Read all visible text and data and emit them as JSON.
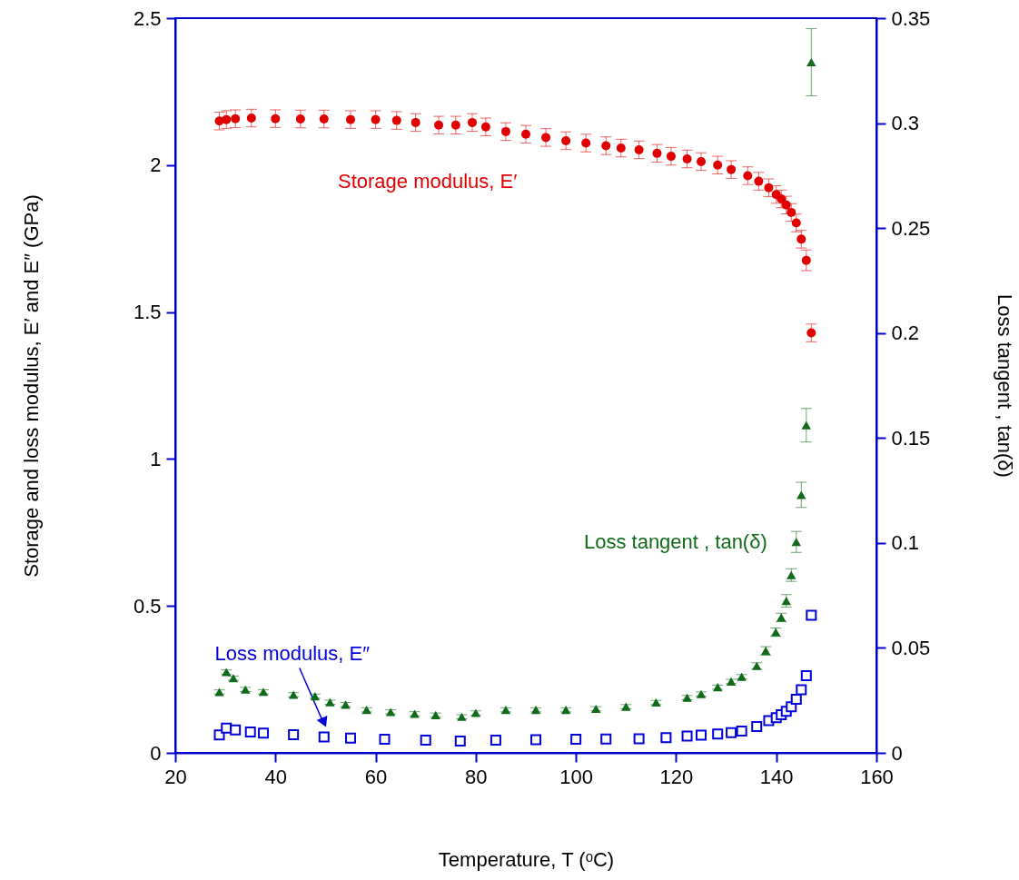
{
  "chart_data": {
    "type": "scatter",
    "xlabel": "Temperature, T (ᵒC)",
    "ylabel": "Storage and loss modulus, E′ and E″ (GPa)",
    "y2label": "Loss tangent , tan(δ)",
    "xlim": [
      20,
      160
    ],
    "xticks": [
      20,
      40,
      60,
      80,
      100,
      120,
      140,
      160
    ],
    "ylim": [
      0,
      2.5
    ],
    "yticks": [
      0,
      0.5,
      1,
      1.5,
      2,
      2.5
    ],
    "y2lim": [
      0,
      0.35
    ],
    "y2ticks": [
      0,
      0.05,
      0.1,
      0.15,
      0.2,
      0.25,
      0.3,
      0.35
    ],
    "grid": false,
    "series": [
      {
        "name": "Storage modulus, E′",
        "color": "#e00000",
        "marker": "circle",
        "x": [
          28.8,
          30.2,
          32,
          35.2,
          40,
          45,
          49.7,
          55,
          60,
          64.2,
          68,
          72.6,
          76,
          79.3,
          82,
          86,
          90,
          94,
          98,
          102,
          106,
          109,
          112.6,
          116.2,
          119,
          122.2,
          125,
          128.3,
          131,
          134.3,
          136.5,
          138.5,
          140,
          141,
          142,
          143,
          144,
          145,
          146,
          147
        ],
        "values": [
          2.15,
          2.155,
          2.158,
          2.16,
          2.158,
          2.157,
          2.157,
          2.155,
          2.155,
          2.152,
          2.145,
          2.136,
          2.136,
          2.145,
          2.13,
          2.114,
          2.105,
          2.094,
          2.083,
          2.075,
          2.066,
          2.058,
          2.052,
          2.04,
          2.03,
          2.021,
          2.012,
          2.0,
          1.985,
          1.964,
          1.945,
          1.923,
          1.9,
          1.885,
          1.864,
          1.839,
          1.803,
          1.748,
          1.676,
          1.429
        ],
        "errors": [
          0.03,
          0.03,
          0.03,
          0.03,
          0.03,
          0.03,
          0.03,
          0.03,
          0.03,
          0.03,
          0.03,
          0.03,
          0.03,
          0.03,
          0.03,
          0.03,
          0.03,
          0.03,
          0.03,
          0.03,
          0.03,
          0.03,
          0.03,
          0.03,
          0.03,
          0.03,
          0.03,
          0.03,
          0.03,
          0.03,
          0.03,
          0.03,
          0.03,
          0.03,
          0.03,
          0.03,
          0.03,
          0.03,
          0.035,
          0.03
        ]
      },
      {
        "name": "Loss modulus, E″",
        "color": "#0000dd",
        "marker": "square",
        "x": [
          28.8,
          30.2,
          32,
          35,
          37.6,
          43.6,
          49.7,
          55,
          61.8,
          70,
          76.9,
          84,
          92,
          100,
          106,
          112.6,
          118,
          122.2,
          125,
          128.3,
          131,
          133.1,
          136.1,
          138.5,
          140,
          141,
          142,
          143,
          144,
          145,
          146,
          147
        ],
        "values": [
          0.061,
          0.084,
          0.078,
          0.071,
          0.067,
          0.062,
          0.054,
          0.05,
          0.046,
          0.043,
          0.04,
          0.043,
          0.045,
          0.046,
          0.047,
          0.048,
          0.052,
          0.057,
          0.06,
          0.064,
          0.069,
          0.074,
          0.09,
          0.11,
          0.12,
          0.13,
          0.141,
          0.157,
          0.182,
          0.215,
          0.263,
          0.468
        ]
      },
      {
        "name": "Loss tangent , tan(δ)",
        "color": "#0f6b1a",
        "marker": "triangle",
        "axis": "y2",
        "x": [
          28.8,
          30.2,
          31.6,
          34,
          37.6,
          43.6,
          47.9,
          50.9,
          54,
          58.2,
          63,
          67.8,
          72,
          77.2,
          80,
          86,
          92,
          98,
          104,
          110,
          116,
          122.2,
          125,
          128.3,
          131,
          133.1,
          136.1,
          137.9,
          139.9,
          141,
          142,
          143,
          144,
          145,
          146,
          147
        ],
        "values": [
          0.029,
          0.0385,
          0.0356,
          0.0302,
          0.0291,
          0.0277,
          0.027,
          0.0241,
          0.023,
          0.0205,
          0.0195,
          0.0186,
          0.018,
          0.0172,
          0.019,
          0.0205,
          0.0205,
          0.0205,
          0.021,
          0.022,
          0.024,
          0.0263,
          0.028,
          0.0313,
          0.034,
          0.0363,
          0.0414,
          0.0486,
          0.0575,
          0.0645,
          0.0724,
          0.0847,
          0.1005,
          0.1229,
          0.1561,
          0.329
        ],
        "errors": [
          0.001,
          0.001,
          0.001,
          0.001,
          0.001,
          0.001,
          0.001,
          0.001,
          0.001,
          0.001,
          0.001,
          0.001,
          0.001,
          0.001,
          0.001,
          0.001,
          0.001,
          0.001,
          0.001,
          0.001,
          0.001,
          0.001,
          0.001,
          0.001,
          0.001,
          0.001,
          0.0015,
          0.002,
          0.002,
          0.002,
          0.003,
          0.003,
          0.005,
          0.006,
          0.008,
          0.016
        ]
      }
    ]
  }
}
